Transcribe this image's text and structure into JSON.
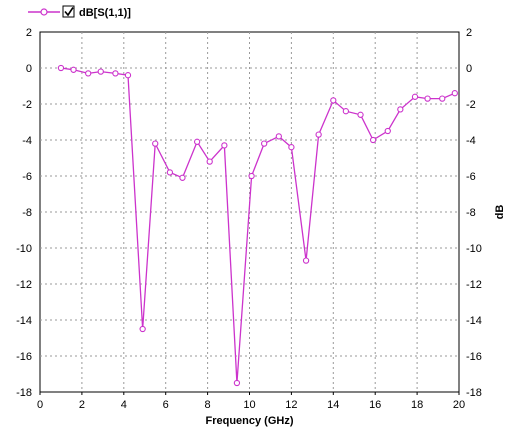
{
  "chart_data": {
    "type": "line",
    "title": "",
    "xlabel": "Frequency (GHz)",
    "ylabel": "dB",
    "xlim": [
      0,
      20
    ],
    "ylim": [
      -18,
      2
    ],
    "xticks": [
      0,
      2,
      4,
      6,
      8,
      10,
      12,
      14,
      16,
      18,
      20
    ],
    "yticks": [
      2,
      0,
      -2,
      -4,
      -6,
      -8,
      -10,
      -12,
      -14,
      -16,
      -18
    ],
    "grid": true,
    "legend_position": "top-left",
    "legend_checked": true,
    "series": [
      {
        "name": "dB[S(1,1)]",
        "color": "#cc33cc",
        "marker": "circle",
        "x": [
          1.0,
          1.6,
          2.3,
          2.9,
          3.6,
          4.2,
          4.9,
          5.5,
          6.2,
          6.8,
          7.5,
          8.1,
          8.8,
          9.4,
          10.1,
          10.7,
          11.4,
          12.0,
          12.7,
          13.3,
          14.0,
          14.6,
          15.3,
          15.9,
          16.6,
          17.2,
          17.9,
          18.5,
          19.2,
          19.8
        ],
        "y": [
          0.0,
          -0.1,
          -0.3,
          -0.2,
          -0.3,
          -0.4,
          -14.5,
          -4.2,
          -5.8,
          -6.1,
          -4.1,
          -5.2,
          -4.3,
          -17.5,
          -6.0,
          -4.2,
          -3.8,
          -4.4,
          -10.7,
          -3.7,
          -1.8,
          -2.4,
          -2.6,
          -4.0,
          -3.5,
          -2.3,
          -1.6,
          -1.7,
          -1.7,
          -1.4
        ]
      }
    ]
  }
}
